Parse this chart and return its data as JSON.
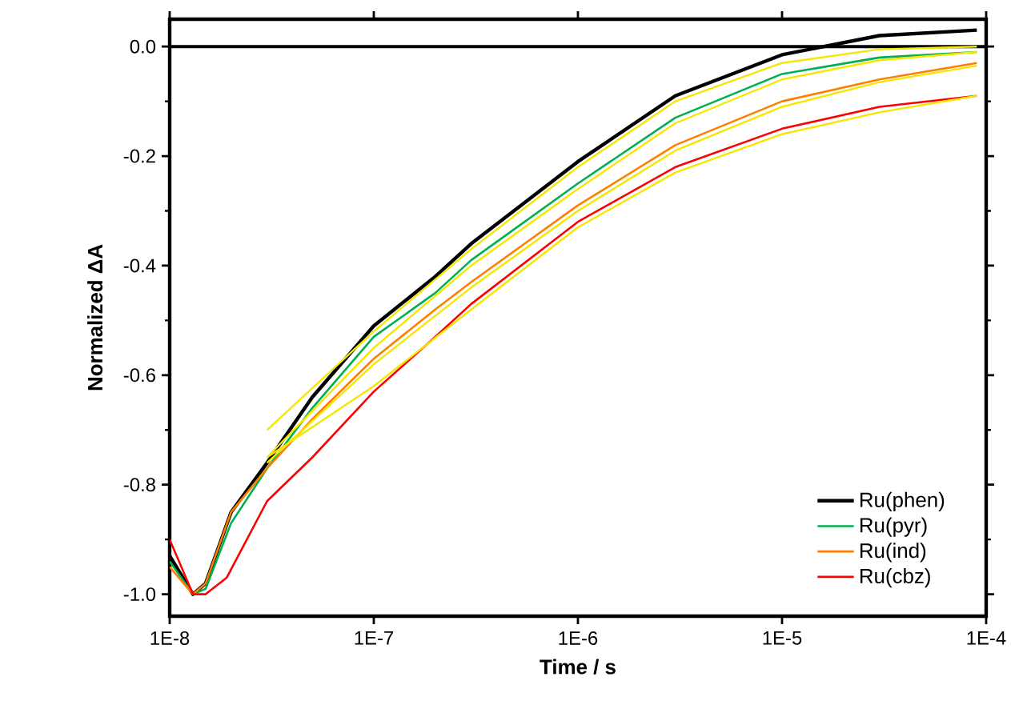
{
  "chart_data": {
    "type": "line",
    "xlabel": "Time / s",
    "ylabel": "Normalized ΔA",
    "log": "x",
    "xlim": [
      1e-08,
      0.0001
    ],
    "ylim": [
      -1.04,
      0.05
    ],
    "xticks": [
      {
        "value": 1e-08,
        "label": "1E-8"
      },
      {
        "value": 1e-07,
        "label": "1E-7"
      },
      {
        "value": 1e-06,
        "label": "1E-6"
      },
      {
        "value": 1e-05,
        "label": "1E-5"
      },
      {
        "value": 0.0001,
        "label": "1E-4"
      }
    ],
    "yticks": [
      {
        "value": 0,
        "label": "0.0"
      },
      {
        "value": -0.2,
        "label": "-0.2"
      },
      {
        "value": -0.4,
        "label": "-0.4"
      },
      {
        "value": -0.6,
        "label": "-0.6"
      },
      {
        "value": -0.8,
        "label": "-0.8"
      },
      {
        "value": -1,
        "label": "-1.0"
      }
    ],
    "legend": "bottom right",
    "grid": false,
    "ref_lines": [
      {
        "axis": "y",
        "value": 0,
        "color": "#000000"
      }
    ],
    "series": [
      {
        "name": "Ru(phen)",
        "color": "#000000",
        "x": [
          1e-08,
          1.3e-08,
          1.5e-08,
          2e-08,
          3e-08,
          5e-08,
          1e-07,
          2e-07,
          3e-07,
          1e-06,
          3e-06,
          1e-05,
          3e-05,
          9e-05
        ],
        "values": [
          -0.93,
          -1.0,
          -0.98,
          -0.85,
          -0.76,
          -0.64,
          -0.51,
          -0.42,
          -0.36,
          -0.21,
          -0.09,
          -0.015,
          0.02,
          0.03
        ]
      },
      {
        "name": "Ru(pyr)",
        "color": "#00b050",
        "x": [
          1e-08,
          1.3e-08,
          1.5e-08,
          2e-08,
          3e-08,
          5e-08,
          1e-07,
          2e-07,
          3e-07,
          1e-06,
          3e-06,
          1e-05,
          3e-05,
          9e-05
        ],
        "values": [
          -0.94,
          -1.0,
          -0.99,
          -0.87,
          -0.77,
          -0.66,
          -0.53,
          -0.45,
          -0.39,
          -0.25,
          -0.13,
          -0.05,
          -0.02,
          -0.01
        ]
      },
      {
        "name": "Ru(ind)",
        "color": "#ff8000",
        "x": [
          1e-08,
          1.3e-08,
          1.5e-08,
          2e-08,
          3e-08,
          5e-08,
          1e-07,
          2e-07,
          3e-07,
          1e-06,
          3e-06,
          1e-05,
          3e-05,
          9e-05
        ],
        "values": [
          -0.95,
          -1.0,
          -0.98,
          -0.85,
          -0.77,
          -0.68,
          -0.57,
          -0.48,
          -0.43,
          -0.29,
          -0.18,
          -0.1,
          -0.06,
          -0.03
        ]
      },
      {
        "name": "Ru(cbz)",
        "color": "#ff0000",
        "x": [
          1e-08,
          1.3e-08,
          1.5e-08,
          1.9e-08,
          3e-08,
          5e-08,
          1e-07,
          2e-07,
          3e-07,
          1e-06,
          3e-06,
          1e-05,
          3e-05,
          9e-05
        ],
        "values": [
          -0.9,
          -1.0,
          -1.0,
          -0.97,
          -0.83,
          -0.75,
          -0.63,
          -0.53,
          -0.47,
          -0.32,
          -0.22,
          -0.15,
          -0.11,
          -0.09
        ]
      },
      {
        "color": "#f5e700",
        "x": [
          3e-08,
          1e-07,
          3e-07,
          1e-06,
          3e-06,
          1e-05,
          3e-05,
          9e-05
        ],
        "values": [
          -0.7,
          -0.52,
          -0.37,
          -0.22,
          -0.1,
          -0.03,
          -0.005,
          0.0
        ]
      },
      {
        "color": "#f5e700",
        "x": [
          3e-08,
          1e-07,
          3e-07,
          1e-06,
          3e-06,
          1e-05,
          3e-05,
          9e-05
        ],
        "values": [
          -0.75,
          -0.55,
          -0.4,
          -0.26,
          -0.14,
          -0.06,
          -0.025,
          -0.01
        ]
      },
      {
        "color": "#f5e700",
        "x": [
          3e-08,
          1e-07,
          3e-07,
          1e-06,
          3e-06,
          1e-05,
          3e-05,
          9e-05
        ],
        "values": [
          -0.76,
          -0.58,
          -0.44,
          -0.3,
          -0.19,
          -0.11,
          -0.065,
          -0.035
        ]
      },
      {
        "color": "#f5e700",
        "x": [
          3e-08,
          1e-07,
          3e-07,
          1e-06,
          3e-06,
          1e-05,
          3e-05,
          9e-05
        ],
        "values": [
          -0.75,
          -0.62,
          -0.48,
          -0.33,
          -0.23,
          -0.16,
          -0.12,
          -0.09
        ]
      }
    ]
  }
}
